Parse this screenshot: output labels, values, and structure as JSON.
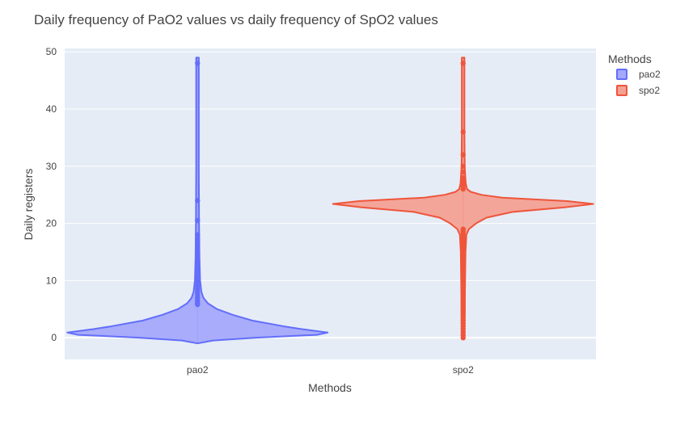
{
  "chart_data": {
    "type": "violin",
    "title": "Daily frequency of PaO2 values vs daily frequency of SpO2 values",
    "xlabel": "Methods",
    "ylabel": "Daily registers",
    "categories": [
      "pao2",
      "spo2"
    ],
    "yticks": [
      0,
      10,
      20,
      30,
      40,
      50
    ],
    "ylim": [
      -3.8,
      50.6
    ],
    "grid": true,
    "legend": {
      "title": "Methods",
      "position": "top-right"
    },
    "series": [
      {
        "name": "pao2",
        "color": "#636efa",
        "fill": "#a4a9fb",
        "category": "pao2",
        "range": [
          -1,
          49
        ],
        "density": [
          [
            -1,
            0.0
          ],
          [
            -0.5,
            0.12
          ],
          [
            0,
            0.45
          ],
          [
            0.5,
            0.92
          ],
          [
            0.9,
            1.0
          ],
          [
            1.5,
            0.8
          ],
          [
            2,
            0.66
          ],
          [
            3,
            0.42
          ],
          [
            4,
            0.27
          ],
          [
            5,
            0.15
          ],
          [
            6,
            0.08
          ],
          [
            7,
            0.045
          ],
          [
            8,
            0.03
          ],
          [
            10,
            0.02
          ],
          [
            14,
            0.015
          ],
          [
            20,
            0.012
          ],
          [
            30,
            0.01
          ],
          [
            49,
            0.01
          ]
        ],
        "outliers": [
          48,
          24,
          20.5,
          18,
          17.3,
          16.8,
          16,
          15.3,
          14.6,
          14,
          13.2,
          12.6,
          12,
          11.4,
          10.8,
          10.2,
          9.6,
          9,
          8.5,
          8,
          7.5,
          7,
          6.5,
          6.1,
          5.8
        ]
      },
      {
        "name": "spo2",
        "color": "#ef553b",
        "fill": "#f3a193",
        "category": "spo2",
        "range": [
          -0.3,
          49
        ],
        "density": [
          [
            -0.3,
            0.008
          ],
          [
            2,
            0.012
          ],
          [
            8,
            0.014
          ],
          [
            15,
            0.018
          ],
          [
            18,
            0.025
          ],
          [
            19,
            0.045
          ],
          [
            20,
            0.1
          ],
          [
            21,
            0.18
          ],
          [
            22,
            0.38
          ],
          [
            22.8,
            0.78
          ],
          [
            23.4,
            1.0
          ],
          [
            23.9,
            0.8
          ],
          [
            24.5,
            0.3
          ],
          [
            25,
            0.14
          ],
          [
            25.5,
            0.06
          ],
          [
            26,
            0.03
          ],
          [
            27,
            0.02
          ],
          [
            30,
            0.012
          ],
          [
            36,
            0.01
          ],
          [
            49,
            0.01
          ]
        ],
        "outliers": [
          48,
          36,
          32,
          30,
          29,
          28,
          27.5,
          27,
          26.5,
          26,
          19,
          18.6,
          18.2,
          17.8,
          17.4,
          17,
          16.5,
          16,
          15.5,
          15,
          14.5,
          14,
          13.5,
          13,
          12.5,
          12,
          11.5,
          11,
          10.5,
          10,
          9.5,
          9,
          8.5,
          8,
          7.5,
          7,
          6.5,
          6,
          5.5,
          5,
          4.5,
          4,
          3.5,
          3,
          2.5,
          2,
          1.5,
          1,
          0.5,
          0
        ]
      }
    ]
  }
}
